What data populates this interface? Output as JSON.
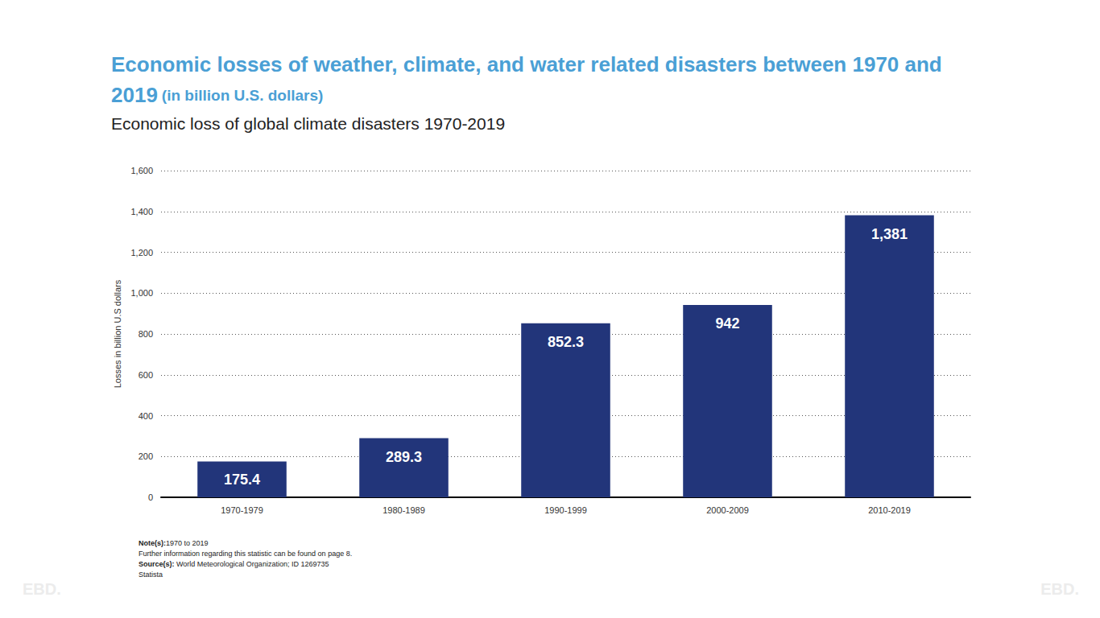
{
  "chart_data": {
    "type": "bar",
    "title": "Economic losses of weather, climate, and water related disasters between 1970 and 2019",
    "title_unit": "(in billion U.S. dollars)",
    "subtitle": "Economic loss of global climate disasters 1970-2019",
    "y_label": "Losses in billion U.S dollars",
    "categories": [
      "1970-1979",
      "1980-1989",
      "1990-1999",
      "2000-2009",
      "2010-2019"
    ],
    "values": [
      175.4,
      289.3,
      852.3,
      942,
      1381
    ],
    "value_labels": [
      "175.4",
      "289.3",
      "852.3",
      "942",
      "1,381"
    ],
    "color": "#22357a",
    "ylim": [
      0,
      1600
    ],
    "yticks": [
      0,
      200,
      400,
      600,
      800,
      {
        "value": 1000,
        "label": "1,000"
      },
      {
        "value": 1200,
        "label": "1,200"
      },
      {
        "value": 1400,
        "label": "1,400"
      },
      {
        "value": 1600,
        "label": "1,600"
      }
    ],
    "grid": true,
    "data_labels": true,
    "notes": [
      "Note(s):1970 to 2019",
      "Further information regarding this statistic can be found on page 8.",
      "Source(s): World Meteorological Organization; ID 1269735",
      "Statista"
    ],
    "watermark": "EBD."
  }
}
